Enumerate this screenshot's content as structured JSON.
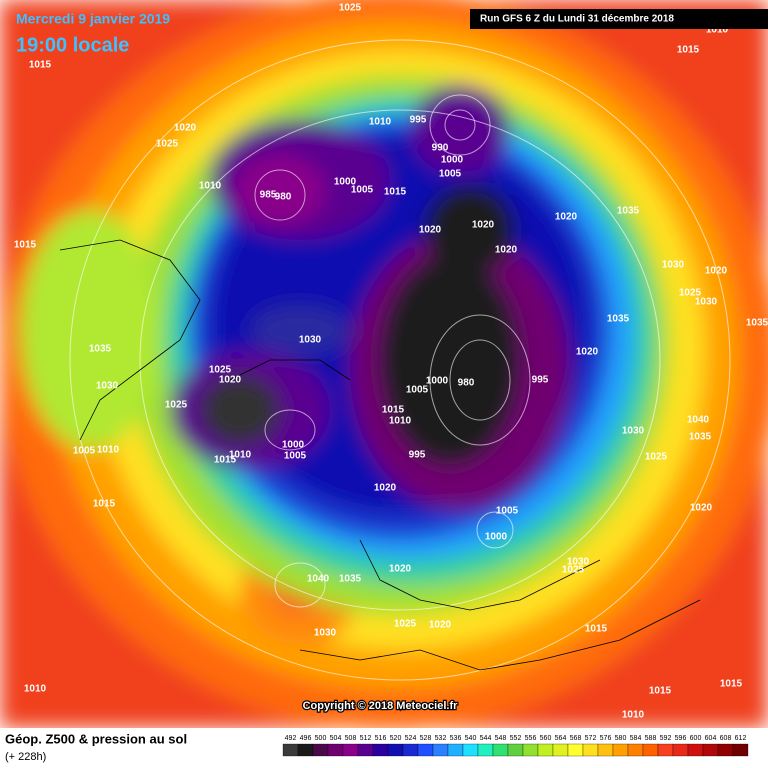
{
  "header": {
    "date": "Mercredi 9 janvier 2019",
    "time": "19:00 locale",
    "run": "Run GFS 6 Z du Lundi 31 décembre 2018"
  },
  "map": {
    "copyright": "Copyright © 2018 Meteociel.fr",
    "pressure_labels": [
      1025,
      1015,
      1020,
      1025,
      1010,
      1015,
      1010,
      995,
      990,
      1000,
      1005,
      985,
      980,
      1000,
      1005,
      1015,
      1020,
      1020,
      1020,
      1020,
      1035,
      1030,
      1020,
      1025,
      1030,
      1035,
      1035,
      1020,
      1030,
      1035,
      1030,
      1025,
      1020,
      1025,
      1005,
      1000,
      980,
      995,
      1015,
      1010,
      995,
      1030,
      1040,
      1035,
      1005,
      1010,
      1015,
      1010,
      1000,
      1005,
      1025,
      1020,
      1005,
      1000,
      1020,
      1015,
      1040,
      1035,
      1020,
      1030,
      1025,
      1030,
      1025,
      1020,
      1015,
      1010,
      1015,
      1015,
      1010,
      1015,
      1010
    ]
  },
  "footer": {
    "title": "Géop. Z500 & pression au sol",
    "lead": "(+ 228h)",
    "scale": {
      "values": [
        492,
        496,
        500,
        504,
        508,
        512,
        516,
        520,
        524,
        528,
        532,
        536,
        540,
        544,
        548,
        552,
        556,
        560,
        564,
        568,
        572,
        576,
        580,
        584,
        588,
        592,
        596,
        600,
        604,
        608,
        612
      ],
      "colors": [
        "#3a3a3a",
        "#1a1a1a",
        "#4a0a4a",
        "#700070",
        "#8a008a",
        "#5a0090",
        "#2a00a0",
        "#1010b0",
        "#1a2ad0",
        "#2050ff",
        "#2a80ff",
        "#20b0ff",
        "#20e0ff",
        "#20f0c0",
        "#30e070",
        "#60d040",
        "#90e030",
        "#c0f020",
        "#e0f020",
        "#ffff30",
        "#ffe020",
        "#ffc010",
        "#ffa000",
        "#ff8000",
        "#ff6000",
        "#f84020",
        "#e82818",
        "#d01010",
        "#b00808",
        "#900000",
        "#700000"
      ]
    }
  }
}
